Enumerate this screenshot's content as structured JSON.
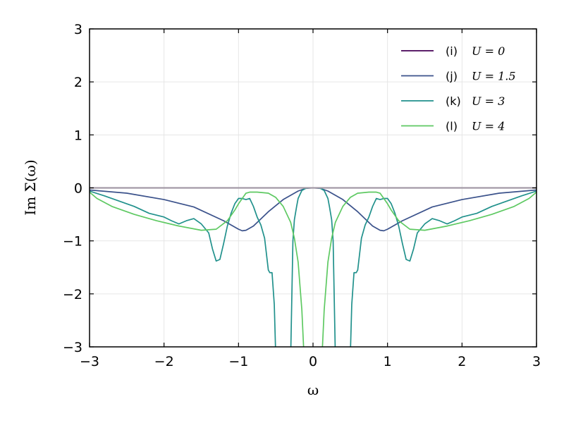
{
  "chart_data": {
    "type": "line",
    "title": "",
    "xlabel": "ω",
    "ylabel": "Im Σ(ω)",
    "xlim": [
      -3,
      3
    ],
    "ylim": [
      -3,
      3
    ],
    "xticks": [
      -3,
      -2,
      -1,
      0,
      1,
      2,
      3
    ],
    "yticks": [
      -3,
      -2,
      -1,
      0,
      1,
      2,
      3
    ],
    "xtick_labels": [
      "−3",
      "−2",
      "−1",
      "0",
      "1",
      "2",
      "3"
    ],
    "ytick_labels": [
      "−3",
      "−2",
      "−1",
      "0",
      "1",
      "2",
      "3"
    ],
    "grid": true,
    "legend_position": "top-right",
    "series": [
      {
        "name": "(i)  U = 0",
        "legend_tag": "(i)",
        "legend_math": "U = 0",
        "color": "#440154",
        "x": [
          -3,
          3
        ],
        "y": [
          0,
          0
        ]
      },
      {
        "name": "(j)  U = 1.5",
        "legend_tag": "(j)",
        "legend_math": "U = 1.5",
        "color": "#3b528b",
        "x": [
          -3,
          -2.5,
          -2.0,
          -1.6,
          -1.2,
          -1.0,
          -0.95,
          -0.9,
          -0.8,
          -0.6,
          -0.4,
          -0.2,
          -0.1,
          0,
          0.1,
          0.2,
          0.4,
          0.6,
          0.8,
          0.9,
          0.95,
          1.0,
          1.2,
          1.6,
          2.0,
          2.5,
          3
        ],
        "y": [
          -0.04,
          -0.1,
          -0.22,
          -0.36,
          -0.62,
          -0.78,
          -0.81,
          -0.8,
          -0.72,
          -0.45,
          -0.22,
          -0.06,
          -0.01,
          0,
          -0.01,
          -0.06,
          -0.22,
          -0.45,
          -0.72,
          -0.8,
          -0.81,
          -0.78,
          -0.62,
          -0.36,
          -0.22,
          -0.1,
          -0.04
        ]
      },
      {
        "name": "(k)  U = 3",
        "legend_tag": "(k)",
        "legend_math": "U = 3",
        "color": "#21918c",
        "x": [
          -3,
          -2.8,
          -2.6,
          -2.4,
          -2.2,
          -2.0,
          -1.9,
          -1.8,
          -1.7,
          -1.6,
          -1.5,
          -1.4,
          -1.35,
          -1.3,
          -1.25,
          -1.2,
          -1.15,
          -1.1,
          -1.05,
          -1.0,
          -0.95,
          -0.9,
          -0.85,
          -0.8,
          -0.75,
          -0.7,
          -0.65,
          -0.6,
          -0.58,
          -0.55,
          -0.52,
          -0.5,
          -0.45,
          -0.4,
          -0.3,
          -0.27,
          -0.25,
          -0.22,
          -0.2,
          -0.15,
          -0.1,
          -0.05,
          0,
          0.05,
          0.1,
          0.15,
          0.2,
          0.22,
          0.25,
          0.27,
          0.3,
          0.4,
          0.45,
          0.5,
          0.52,
          0.55,
          0.58,
          0.6,
          0.65,
          0.7,
          0.75,
          0.8,
          0.85,
          0.9,
          0.95,
          1.0,
          1.05,
          1.1,
          1.15,
          1.2,
          1.25,
          1.3,
          1.35,
          1.4,
          1.5,
          1.6,
          1.7,
          1.8,
          1.9,
          2.0,
          2.2,
          2.4,
          2.6,
          2.8,
          3
        ],
        "y": [
          -0.06,
          -0.15,
          -0.25,
          -0.35,
          -0.48,
          -0.55,
          -0.62,
          -0.68,
          -0.62,
          -0.58,
          -0.68,
          -0.85,
          -1.15,
          -1.38,
          -1.35,
          -1.05,
          -0.72,
          -0.48,
          -0.3,
          -0.2,
          -0.2,
          -0.22,
          -0.2,
          -0.35,
          -0.55,
          -0.7,
          -0.95,
          -1.55,
          -1.6,
          -1.6,
          -2.2,
          -3.2,
          -3.2,
          -3.2,
          -3.2,
          -1.0,
          -0.6,
          -0.35,
          -0.2,
          -0.05,
          -0.01,
          0,
          0,
          0,
          -0.01,
          -0.05,
          -0.2,
          -0.35,
          -0.6,
          -1.0,
          -3.2,
          -3.2,
          -3.2,
          -3.2,
          -2.2,
          -1.6,
          -1.6,
          -1.55,
          -0.95,
          -0.7,
          -0.55,
          -0.35,
          -0.2,
          -0.22,
          -0.2,
          -0.2,
          -0.3,
          -0.48,
          -0.72,
          -1.05,
          -1.35,
          -1.38,
          -1.15,
          -0.85,
          -0.68,
          -0.58,
          -0.62,
          -0.68,
          -0.62,
          -0.55,
          -0.48,
          -0.35,
          -0.25,
          -0.15,
          -0.06
        ]
      },
      {
        "name": "(l)  U = 4",
        "legend_tag": "(l)",
        "legend_math": "U = 4",
        "color": "#5ec962",
        "x": [
          -3,
          -2.9,
          -2.7,
          -2.4,
          -2.1,
          -1.8,
          -1.5,
          -1.3,
          -1.15,
          -1.05,
          -1.0,
          -0.95,
          -0.92,
          -0.9,
          -0.85,
          -0.75,
          -0.6,
          -0.5,
          -0.4,
          -0.3,
          -0.25,
          -0.2,
          -0.15,
          -0.12,
          -0.1,
          0.1,
          0.12,
          0.15,
          0.2,
          0.25,
          0.3,
          0.4,
          0.5,
          0.6,
          0.75,
          0.85,
          0.9,
          0.92,
          0.95,
          1.0,
          1.05,
          1.15,
          1.3,
          1.5,
          1.8,
          2.1,
          2.4,
          2.7,
          2.9,
          3
        ],
        "y": [
          -0.08,
          -0.2,
          -0.35,
          -0.5,
          -0.62,
          -0.72,
          -0.8,
          -0.78,
          -0.62,
          -0.42,
          -0.3,
          -0.2,
          -0.14,
          -0.1,
          -0.08,
          -0.08,
          -0.1,
          -0.18,
          -0.35,
          -0.65,
          -0.95,
          -1.4,
          -2.3,
          -3.2,
          -3.2,
          -3.2,
          -3.2,
          -2.3,
          -1.4,
          -0.95,
          -0.65,
          -0.35,
          -0.18,
          -0.1,
          -0.08,
          -0.08,
          -0.1,
          -0.14,
          -0.2,
          -0.3,
          -0.42,
          -0.62,
          -0.78,
          -0.8,
          -0.72,
          -0.62,
          -0.5,
          -0.35,
          -0.2,
          -0.08
        ]
      },
      {
        "name": "",
        "color": "#a39aa6",
        "x": [
          -3,
          3
        ],
        "y": [
          0,
          0
        ]
      }
    ]
  }
}
